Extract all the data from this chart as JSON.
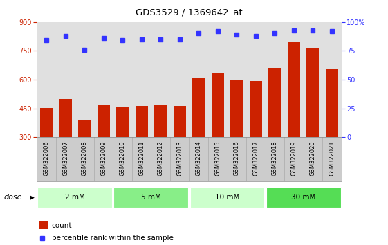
{
  "title": "GDS3529 / 1369642_at",
  "categories": [
    "GSM322006",
    "GSM322007",
    "GSM322008",
    "GSM322009",
    "GSM322010",
    "GSM322011",
    "GSM322012",
    "GSM322013",
    "GSM322014",
    "GSM322015",
    "GSM322016",
    "GSM322017",
    "GSM322018",
    "GSM322019",
    "GSM322020",
    "GSM322021"
  ],
  "bar_values": [
    452,
    500,
    387,
    468,
    460,
    463,
    468,
    462,
    612,
    638,
    597,
    592,
    660,
    800,
    765,
    658
  ],
  "dot_values": [
    84,
    88,
    76,
    86,
    84,
    85,
    85,
    85,
    90,
    92,
    89,
    88,
    90,
    93,
    93,
    92
  ],
  "bar_color": "#cc2200",
  "dot_color": "#3333ff",
  "ylim_left": [
    300,
    900
  ],
  "ylim_right": [
    0,
    100
  ],
  "yticks_left": [
    300,
    450,
    600,
    750,
    900
  ],
  "yticks_right": [
    0,
    25,
    50,
    75,
    100
  ],
  "dose_groups": [
    {
      "label": "2 mM",
      "start": 0,
      "end": 4,
      "color": "#ccffcc"
    },
    {
      "label": "5 mM",
      "start": 4,
      "end": 8,
      "color": "#88ee88"
    },
    {
      "label": "10 mM",
      "start": 8,
      "end": 12,
      "color": "#ccffcc"
    },
    {
      "label": "30 mM",
      "start": 12,
      "end": 16,
      "color": "#55dd55"
    }
  ],
  "dose_label": "dose",
  "legend_bar_label": "count",
  "legend_dot_label": "percentile rank within the sample",
  "grid_color": "#555555",
  "axis_bg": "#e0e0e0",
  "tick_bg": "#cccccc"
}
